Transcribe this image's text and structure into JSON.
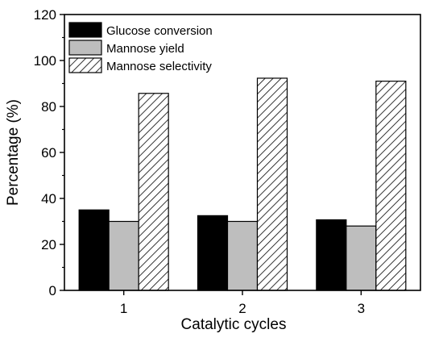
{
  "chart_data": {
    "type": "bar",
    "categories": [
      "1",
      "2",
      "3"
    ],
    "series": [
      {
        "name": "Glucose conversion",
        "values": [
          35,
          32.5,
          30.7
        ],
        "fill": "#000000",
        "pattern": "solid"
      },
      {
        "name": "Mannose yield",
        "values": [
          30,
          30,
          28
        ],
        "fill": "#bebebe",
        "pattern": "solid"
      },
      {
        "name": "Mannose selectivity",
        "values": [
          85.7,
          92.3,
          91
        ],
        "fill": "#ffffff",
        "pattern": "diagonal-hatch"
      }
    ],
    "xlabel": "Catalytic cycles",
    "ylabel": "Percentage (%)",
    "ylim": [
      0,
      120
    ],
    "yticks": [
      "0",
      "20",
      "40",
      "60",
      "80",
      "100",
      "120"
    ],
    "grid": false,
    "legend_position": "top-left"
  }
}
